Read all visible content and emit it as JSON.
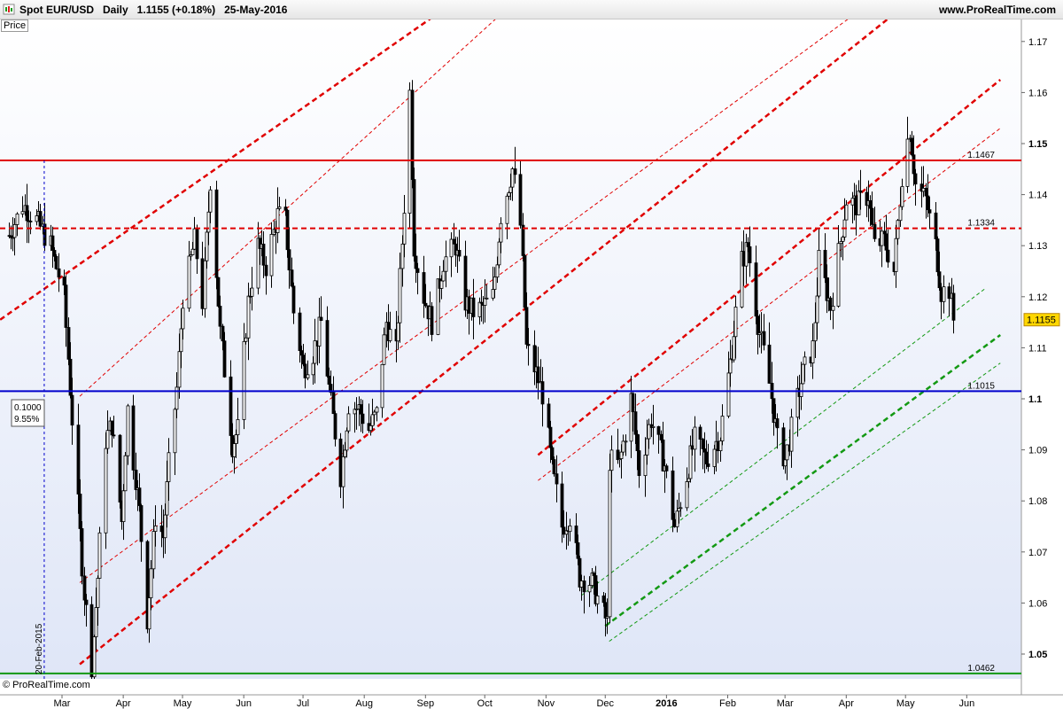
{
  "header": {
    "title": "Spot EUR/USD   Daily   1.1155 (+0.18%)   25-May-2016",
    "site": "www.ProRealTime.com",
    "icon": "candlestick-chart-icon"
  },
  "panel": {
    "price_label": "Price"
  },
  "footer": {
    "copyright": "© ProRealTime.com"
  },
  "colors": {
    "background_top": "#ffffff",
    "background_bottom": "#dfe6f7",
    "resistance_red": "#e00000",
    "support_blue": "#0000cc",
    "channel_green": "#139913",
    "candle": "#000000"
  },
  "chart_data": {
    "type": "candlestick",
    "instrument": "Spot EUR/USD",
    "timeframe": "Daily",
    "last_price": 1.1155,
    "change": "+0.18%",
    "date": "25-May-2016",
    "ylim": [
      1.045,
      1.175
    ],
    "y_ticks": [
      {
        "value": 1.05,
        "label": "1.05",
        "bold": true
      },
      {
        "value": 1.06,
        "label": "1.06",
        "bold": false
      },
      {
        "value": 1.07,
        "label": "1.07",
        "bold": false
      },
      {
        "value": 1.08,
        "label": "1.08",
        "bold": false
      },
      {
        "value": 1.09,
        "label": "1.09",
        "bold": false
      },
      {
        "value": 1.1,
        "label": "1.1",
        "bold": true
      },
      {
        "value": 1.11,
        "label": "1.11",
        "bold": false
      },
      {
        "value": 1.12,
        "label": "1.12",
        "bold": false
      },
      {
        "value": 1.13,
        "label": "1.13",
        "bold": false
      },
      {
        "value": 1.14,
        "label": "1.14",
        "bold": false
      },
      {
        "value": 1.15,
        "label": "1.15",
        "bold": true
      },
      {
        "value": 1.16,
        "label": "1.16",
        "bold": false
      },
      {
        "value": 1.17,
        "label": "1.17",
        "bold": false
      }
    ],
    "x_ticks": [
      {
        "date": "2015-03-01",
        "label": "Mar"
      },
      {
        "date": "2015-04-01",
        "label": "Apr"
      },
      {
        "date": "2015-05-01",
        "label": "May"
      },
      {
        "date": "2015-06-01",
        "label": "Jun"
      },
      {
        "date": "2015-07-01",
        "label": "Jul"
      },
      {
        "date": "2015-08-01",
        "label": "Aug"
      },
      {
        "date": "2015-09-01",
        "label": "Sep"
      },
      {
        "date": "2015-10-01",
        "label": "Oct"
      },
      {
        "date": "2015-11-01",
        "label": "Nov"
      },
      {
        "date": "2015-12-01",
        "label": "Dec"
      },
      {
        "date": "2016-01-01",
        "label": "2016",
        "bold": true
      },
      {
        "date": "2016-02-01",
        "label": "Feb"
      },
      {
        "date": "2016-03-01",
        "label": "Mar"
      },
      {
        "date": "2016-04-01",
        "label": "Apr"
      },
      {
        "date": "2016-05-01",
        "label": "May"
      },
      {
        "date": "2016-06-01",
        "label": "Jun"
      }
    ],
    "x_range": [
      "2015-02-01",
      "2016-06-18"
    ],
    "horizontal_levels": [
      {
        "value": 1.1467,
        "label": "1.1467",
        "color": "#e00000",
        "style": "solid"
      },
      {
        "value": 1.1334,
        "label": "1.1334",
        "color": "#e00000",
        "style": "dashed"
      },
      {
        "value": 1.1015,
        "label": "1.1015",
        "color": "#0000cc",
        "style": "solid"
      },
      {
        "value": 1.0462,
        "label": "1.0462",
        "color": "#139913",
        "style": "solid"
      }
    ],
    "vertical_marker": {
      "date": "2015-02-20",
      "label": "20-Feb-2015",
      "color": "#0000cc"
    },
    "retracement_box": {
      "value": "0.1000",
      "percent": "9.55%"
    },
    "last_price_label": "1.1155",
    "trend_lines": [
      {
        "start": [
          "2015-01-25",
          1.1145
        ],
        "end": [
          "2015-10-05",
          1.183
        ],
        "color": "#e00000",
        "style": "thick-dashed"
      },
      {
        "start": [
          "2015-03-10",
          1.1005
        ],
        "end": [
          "2015-10-31",
          1.183
        ],
        "color": "#e00000",
        "style": "thin-dashed"
      },
      {
        "start": [
          "2015-03-10",
          1.048
        ],
        "end": [
          "2016-06-18",
          1.192
        ],
        "color": "#e00000",
        "style": "thick-dashed"
      },
      {
        "start": [
          "2015-03-10",
          1.064
        ],
        "end": [
          "2016-06-10",
          1.194
        ],
        "color": "#e00000",
        "style": "thin-dashed"
      },
      {
        "start": [
          "2015-10-28",
          1.089
        ],
        "end": [
          "2016-06-18",
          1.1625
        ],
        "color": "#e00000",
        "style": "thick-dashed"
      },
      {
        "start": [
          "2015-10-28",
          1.084
        ],
        "end": [
          "2016-06-18",
          1.153
        ],
        "color": "#e00000",
        "style": "thin-dashed"
      },
      {
        "start": [
          "2015-11-19",
          1.0615
        ],
        "end": [
          "2016-06-10",
          1.1215
        ],
        "color": "#139913",
        "style": "thin-dashed"
      },
      {
        "start": [
          "2015-12-01",
          1.0555
        ],
        "end": [
          "2016-06-18",
          1.1125
        ],
        "color": "#139913",
        "style": "thick-dashed"
      },
      {
        "start": [
          "2015-12-03",
          1.0525
        ],
        "end": [
          "2016-06-18",
          1.107
        ],
        "color": "#139913",
        "style": "thin-dashed"
      }
    ],
    "price_path": [
      [
        "2015-02-02",
        1.132
      ],
      [
        "2015-02-09",
        1.138
      ],
      [
        "2015-02-16",
        1.135
      ],
      [
        "2015-02-23",
        1.13
      ],
      [
        "2015-03-02",
        1.12
      ],
      [
        "2015-03-06",
        1.096
      ],
      [
        "2015-03-12",
        1.062
      ],
      [
        "2015-03-16",
        1.048
      ],
      [
        "2015-03-19",
        1.065
      ],
      [
        "2015-03-23",
        1.092
      ],
      [
        "2015-03-26",
        1.095
      ],
      [
        "2015-03-31",
        1.076
      ],
      [
        "2015-04-03",
        1.098
      ],
      [
        "2015-04-09",
        1.078
      ],
      [
        "2015-04-13",
        1.057
      ],
      [
        "2015-04-17",
        1.077
      ],
      [
        "2015-04-21",
        1.073
      ],
      [
        "2015-04-24",
        1.087
      ],
      [
        "2015-04-28",
        1.102
      ],
      [
        "2015-05-01",
        1.12
      ],
      [
        "2015-05-07",
        1.131
      ],
      [
        "2015-05-11",
        1.119
      ],
      [
        "2015-05-15",
        1.143
      ],
      [
        "2015-05-20",
        1.113
      ],
      [
        "2015-05-26",
        1.091
      ],
      [
        "2015-05-29",
        1.094
      ],
      [
        "2015-06-03",
        1.119
      ],
      [
        "2015-06-08",
        1.13
      ],
      [
        "2015-06-12",
        1.126
      ],
      [
        "2015-06-18",
        1.136
      ],
      [
        "2015-06-22",
        1.135
      ],
      [
        "2015-06-26",
        1.117
      ],
      [
        "2015-07-01",
        1.106
      ],
      [
        "2015-07-06",
        1.109
      ],
      [
        "2015-07-10",
        1.115
      ],
      [
        "2015-07-15",
        1.099
      ],
      [
        "2015-07-20",
        1.085
      ],
      [
        "2015-07-24",
        1.099
      ],
      [
        "2015-07-29",
        1.098
      ],
      [
        "2015-08-03",
        1.094
      ],
      [
        "2015-08-07",
        1.097
      ],
      [
        "2015-08-12",
        1.115
      ],
      [
        "2015-08-17",
        1.109
      ],
      [
        "2015-08-21",
        1.138
      ],
      [
        "2015-08-24",
        1.16
      ],
      [
        "2015-08-26",
        1.13
      ],
      [
        "2015-08-31",
        1.12
      ],
      [
        "2015-09-04",
        1.115
      ],
      [
        "2015-09-10",
        1.127
      ],
      [
        "2015-09-16",
        1.13
      ],
      [
        "2015-09-21",
        1.119
      ],
      [
        "2015-09-25",
        1.117
      ],
      [
        "2015-09-30",
        1.118
      ],
      [
        "2015-10-05",
        1.12
      ],
      [
        "2015-10-09",
        1.136
      ],
      [
        "2015-10-15",
        1.145
      ],
      [
        "2015-10-19",
        1.134
      ],
      [
        "2015-10-22",
        1.11
      ],
      [
        "2015-10-27",
        1.105
      ],
      [
        "2015-10-30",
        1.101
      ],
      [
        "2015-11-04",
        1.086
      ],
      [
        "2015-11-09",
        1.075
      ],
      [
        "2015-11-13",
        1.077
      ],
      [
        "2015-11-18",
        1.065
      ],
      [
        "2015-11-24",
        1.064
      ],
      [
        "2015-12-02",
        1.056
      ],
      [
        "2015-12-03",
        1.088
      ],
      [
        "2015-12-08",
        1.087
      ],
      [
        "2015-12-14",
        1.1
      ],
      [
        "2015-12-18",
        1.086
      ],
      [
        "2015-12-24",
        1.096
      ],
      [
        "2015-12-31",
        1.087
      ],
      [
        "2016-01-05",
        1.075
      ],
      [
        "2016-01-11",
        1.085
      ],
      [
        "2016-01-15",
        1.092
      ],
      [
        "2016-01-21",
        1.088
      ],
      [
        "2016-01-28",
        1.093
      ],
      [
        "2016-02-03",
        1.11
      ],
      [
        "2016-02-08",
        1.127
      ],
      [
        "2016-02-11",
        1.13
      ],
      [
        "2016-02-16",
        1.115
      ],
      [
        "2016-02-22",
        1.103
      ],
      [
        "2016-02-26",
        1.092
      ],
      [
        "2016-03-01",
        1.088
      ],
      [
        "2016-03-07",
        1.1
      ],
      [
        "2016-03-10",
        1.105
      ],
      [
        "2016-03-15",
        1.11
      ],
      [
        "2016-03-18",
        1.127
      ],
      [
        "2016-03-24",
        1.118
      ],
      [
        "2016-03-29",
        1.131
      ],
      [
        "2016-04-01",
        1.139
      ],
      [
        "2016-04-06",
        1.138
      ],
      [
        "2016-04-12",
        1.14
      ],
      [
        "2016-04-15",
        1.13
      ],
      [
        "2016-04-20",
        1.131
      ],
      [
        "2016-04-25",
        1.125
      ],
      [
        "2016-04-29",
        1.144
      ],
      [
        "2016-05-03",
        1.153
      ],
      [
        "2016-05-06",
        1.142
      ],
      [
        "2016-05-11",
        1.139
      ],
      [
        "2016-05-16",
        1.13
      ],
      [
        "2016-05-19",
        1.121
      ],
      [
        "2016-05-23",
        1.1215
      ],
      [
        "2016-05-25",
        1.1155
      ]
    ]
  }
}
